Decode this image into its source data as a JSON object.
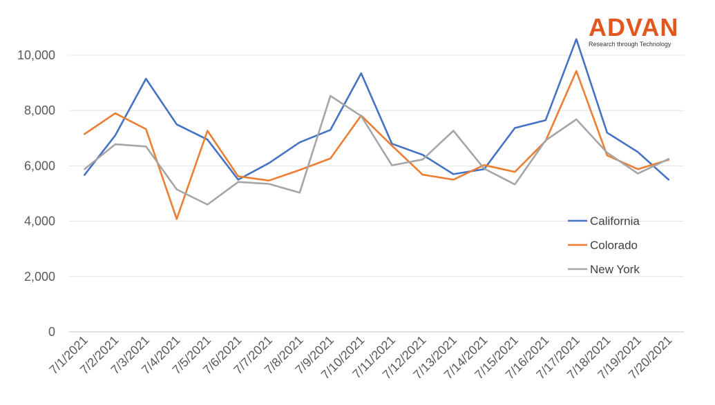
{
  "logo": {
    "name": "ADVAN",
    "tagline": "Research through Technology"
  },
  "chart_data": {
    "type": "line",
    "title": "",
    "xlabel": "",
    "ylabel": "",
    "ylim": [
      0,
      10000
    ],
    "yticks": [
      0,
      2000,
      4000,
      6000,
      8000,
      10000
    ],
    "ytick_labels": [
      "0",
      "2,000",
      "4,000",
      "6,000",
      "8,000",
      "10,000"
    ],
    "grid": true,
    "legend_position": "right",
    "categories": [
      "7/1/2021",
      "7/2/2021",
      "7/3/2021",
      "7/4/2021",
      "7/5/2021",
      "7/6/2021",
      "7/7/2021",
      "7/8/2021",
      "7/9/2021",
      "7/10/2021",
      "7/11/2021",
      "7/12/2021",
      "7/13/2021",
      "7/14/2021",
      "7/15/2021",
      "7/16/2021",
      "7/17/2021",
      "7/18/2021",
      "7/19/2021",
      "7/20/2021"
    ],
    "series": [
      {
        "name": "California",
        "color": "#4472c4",
        "values": [
          5670,
          7100,
          9150,
          7500,
          6950,
          5500,
          6100,
          6850,
          7300,
          9350,
          6800,
          6400,
          5700,
          5880,
          7370,
          7650,
          10580,
          7200,
          6500,
          5500
        ]
      },
      {
        "name": "Colorado",
        "color": "#ed7d31",
        "values": [
          7150,
          7900,
          7330,
          4080,
          7270,
          5620,
          5470,
          5850,
          6270,
          7820,
          6730,
          5680,
          5500,
          6030,
          5780,
          6900,
          9430,
          6380,
          5880,
          6220
        ]
      },
      {
        "name": "New York",
        "color": "#a5a5a5",
        "values": [
          5880,
          6780,
          6700,
          5150,
          4600,
          5420,
          5350,
          5030,
          8530,
          7800,
          6020,
          6230,
          7270,
          5900,
          5330,
          6920,
          7680,
          6480,
          5720,
          6250
        ]
      }
    ]
  }
}
